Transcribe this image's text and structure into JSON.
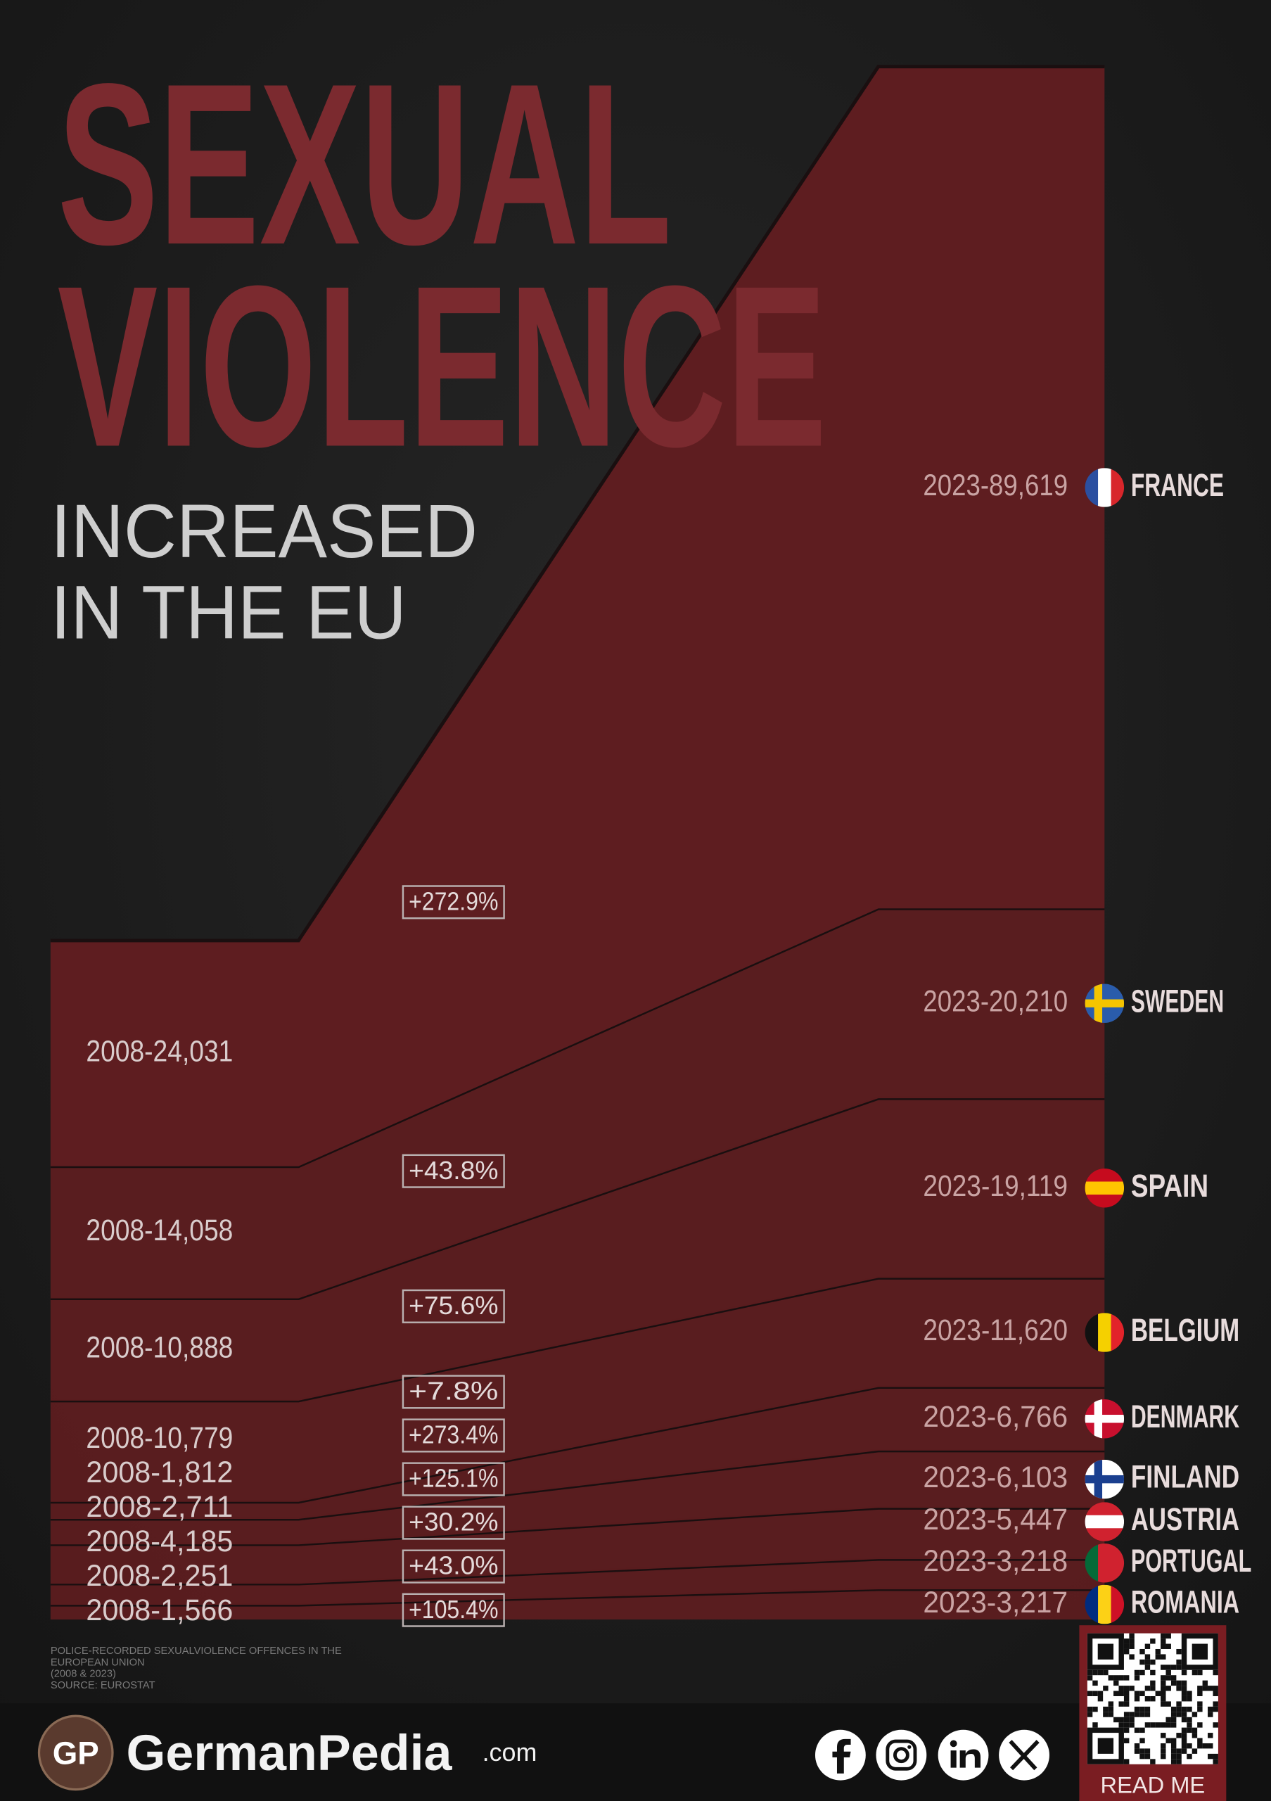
{
  "chart_data": {
    "type": "area",
    "title": [
      "SEXUAL",
      "VIOLENCE"
    ],
    "subtitle": [
      "INCREASED",
      "IN THE EU"
    ],
    "color": "#5e1d20",
    "series": [
      {
        "name": "FRANCE",
        "values": [
          24031,
          89619
        ],
        "value_labels": [
          "2008-24,031",
          "2023-89,619"
        ],
        "change_label": "+272.9%"
      },
      {
        "name": "SWEDEN",
        "values": [
          14058,
          20210
        ],
        "value_labels": [
          "2008-14,058",
          "2023-20,210"
        ],
        "change_label": "+43.8%"
      },
      {
        "name": "SPAIN",
        "values": [
          10888,
          19119
        ],
        "value_labels": [
          "2008-10,888",
          "2023-19,119"
        ],
        "change_label": "+75.6%"
      },
      {
        "name": "BELGIUM",
        "values": [
          10779,
          11620
        ],
        "value_labels": [
          "2008-10,779",
          "2023-11,620"
        ],
        "change_label": "+7.8%"
      },
      {
        "name": "DENMARK",
        "values": [
          1812,
          6766
        ],
        "value_labels": [
          "2008-1,812",
          "2023-6,766"
        ],
        "change_label": "+273.4%"
      },
      {
        "name": "FINLAND",
        "values": [
          2711,
          6103
        ],
        "value_labels": [
          "2008-2,711",
          "2023-6,103"
        ],
        "change_label": "+125.1%"
      },
      {
        "name": "AUSTRIA",
        "values": [
          4185,
          5447
        ],
        "value_labels": [
          "2008-4,185",
          "2023-5,447"
        ],
        "change_label": "+30.2%"
      },
      {
        "name": "PORTUGAL",
        "values": [
          2251,
          3218
        ],
        "value_labels": [
          "2008-2,251",
          "2023-3,218"
        ],
        "change_label": "+43.0%"
      },
      {
        "name": "ROMANIA",
        "values": [
          1566,
          3217
        ],
        "value_labels": [
          "2008-1,566",
          "2023-3,217"
        ],
        "change_label": "+105.4%"
      }
    ],
    "note": [
      "POLICE-RECORDED SEXUALVIOLENCE OFFENCES IN THE",
      "EUROPEAN UNION",
      "(2008 & 2023)",
      "SOURCE: EUROSTAT"
    ]
  },
  "footer": {
    "logo": "GP",
    "brand": "GermanPedia",
    "domain": ".com",
    "button": "READ ME"
  }
}
